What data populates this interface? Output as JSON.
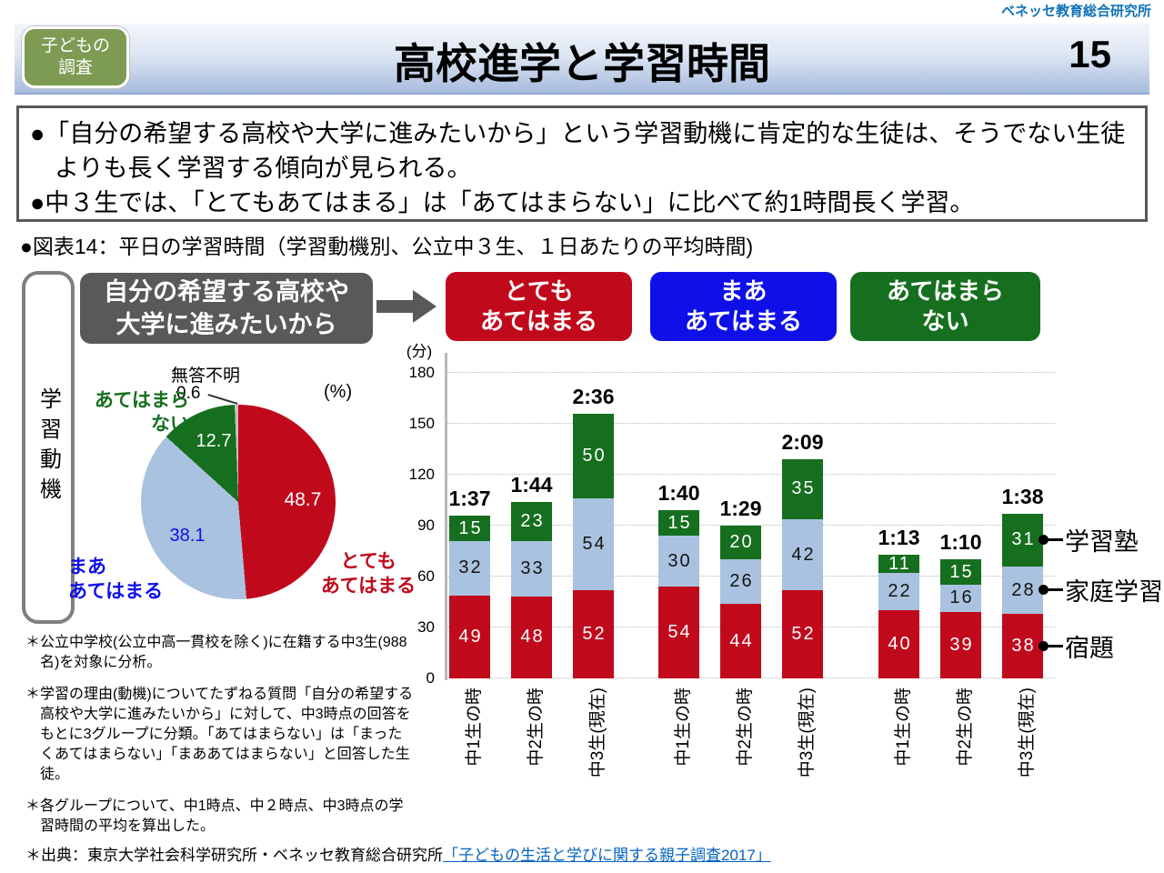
{
  "brand": "ベネッセ教育総合研究所",
  "header": {
    "badge": "子どもの\n調査",
    "title": "高校進学と学習時間",
    "page_number": "15"
  },
  "summary": {
    "bullets": [
      "●「自分の希望する高校や大学に進みたいから」という学習動機に肯定的な生徒は、そうでない生徒よりも長く学習する傾向が見られる。",
      "●中３生では、「とてもあてはまる」は「あてはまらない」に比べて約1時間長く学習。"
    ]
  },
  "figure_caption": "●図表14：平日の学習時間（学習動機別、公立中３生、１日あたりの平均時間)",
  "left_panel": {
    "axis_label_vertical": "学習動機",
    "question_box": "自分の希望する高校や\n大学に進みたいから"
  },
  "chart_data": [
    {
      "type": "pie",
      "unit_label": "(%)",
      "start_angle": "top, clockwise",
      "slices": [
        {
          "label": "とてもあてはまる",
          "label_display": "とても\nあてはまる",
          "value": 48.7,
          "color": "#c00a1c"
        },
        {
          "label": "まああてはまる",
          "label_display": "まあ\nあてはまる",
          "value": 38.1,
          "color": "#a9c2df"
        },
        {
          "label": "あてはまらない",
          "label_display": "あてはまら\nない",
          "value": 12.7,
          "color": "#156f1e"
        },
        {
          "label": "無答不明",
          "label_display": "無答不明",
          "value": 0.6,
          "color": "#c0c0c0"
        }
      ]
    },
    {
      "type": "stacked-bar",
      "ylabel": "(分)",
      "ymax": 180,
      "yticks": [
        0,
        30,
        60,
        90,
        120,
        150,
        180
      ],
      "grid": "dotted horizontal lines at each 30-minute tick",
      "categories": [
        "中1生の時",
        "中2生の時",
        "中3生(現在)"
      ],
      "series_order": [
        "宿題",
        "家庭学習",
        "学習塾"
      ],
      "series_colors": {
        "宿題": "#c00a1c",
        "家庭学習": "#a9c2df",
        "学習塾": "#156f1e"
      },
      "groups": [
        {
          "title": "とても\nあてはまる",
          "color": "#c00a1c",
          "bars": [
            {
              "category": "中1生の時",
              "total_label": "1:37",
              "宿題": 49,
              "家庭学習": 32,
              "学習塾": 15
            },
            {
              "category": "中2生の時",
              "total_label": "1:44",
              "宿題": 48,
              "家庭学習": 33,
              "学習塾": 23
            },
            {
              "category": "中3生(現在)",
              "total_label": "2:36",
              "宿題": 52,
              "家庭学習": 54,
              "学習塾": 50
            }
          ]
        },
        {
          "title": "まあ\nあてはまる",
          "color": "#0f0fe8",
          "bars": [
            {
              "category": "中1生の時",
              "total_label": "1:40",
              "宿題": 54,
              "家庭学習": 30,
              "学習塾": 15
            },
            {
              "category": "中2生の時",
              "total_label": "1:29",
              "宿題": 44,
              "家庭学習": 26,
              "学習塾": 20
            },
            {
              "category": "中3生(現在)",
              "total_label": "2:09",
              "宿題": 52,
              "家庭学習": 42,
              "学習塾": 35
            }
          ]
        },
        {
          "title": "あてはまら\nない",
          "color": "#156f1e",
          "bars": [
            {
              "category": "中1生の時",
              "total_label": "1:13",
              "宿題": 40,
              "家庭学習": 22,
              "学習塾": 11
            },
            {
              "category": "中2生の時",
              "total_label": "1:10",
              "宿題": 39,
              "家庭学習": 16,
              "学習塾": 15
            },
            {
              "category": "中3生(現在)",
              "total_label": "1:38",
              "宿題": 38,
              "家庭学習": 28,
              "学習塾": 31
            }
          ]
        }
      ],
      "legend": [
        {
          "label": "学習塾",
          "color": "#156f1e"
        },
        {
          "label": "家庭学習",
          "color": "#a9c2df"
        },
        {
          "label": "宿題",
          "color": "#c00a1c"
        }
      ],
      "legend_position": "right of last bar, connected by dot-and-line markers"
    }
  ],
  "footnotes": [
    "＊公立中学校(公立中高一貫校を除く)に在籍する中3生(988名)を対象に分析。",
    "＊学習の理由(動機)についてたずねる質問「自分の希望する高校や大学に進みたいから」に対して、中3時点の回答をもとに3グループに分類。「あてはまらない」は「まったくあてはまらない」「まああてはまらない」と回答した生徒。",
    "＊各グループについて、中1時点、中２時点、中3時点の学習時間の平均を算出した。"
  ],
  "source": {
    "prefix": "＊出典：東京大学社会科学研究所・ベネッセ教育総合研究所",
    "link_text": "「子どもの生活と学びに関する親子調査2017」"
  }
}
